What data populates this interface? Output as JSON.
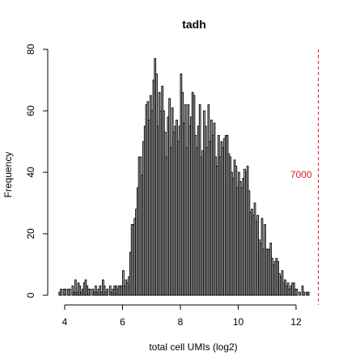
{
  "chart_data": {
    "type": "bar",
    "title": "tadh",
    "xlabel": "total cell UMIs (log2)",
    "ylabel": "Frequency",
    "xlim": [
      3.8,
      13.1
    ],
    "ylim": [
      0,
      80
    ],
    "x_ticks": [
      4,
      6,
      8,
      10,
      12
    ],
    "y_ticks": [
      0,
      20,
      40,
      60,
      80
    ],
    "bin_start": 3.8,
    "bin_width": 0.05,
    "values": [
      1,
      2,
      0,
      2,
      2,
      0,
      2,
      2,
      0,
      3,
      1,
      5,
      1,
      4,
      3,
      1,
      2,
      4,
      5,
      3,
      2,
      2,
      0,
      2,
      1,
      3,
      1,
      2,
      3,
      1,
      5,
      3,
      1,
      2,
      0,
      3,
      1,
      2,
      3,
      3,
      2,
      3,
      3,
      3,
      8,
      3,
      5,
      4,
      6,
      14,
      23,
      23,
      25,
      28,
      35,
      45,
      45,
      39,
      50,
      55,
      62,
      63,
      57,
      65,
      60,
      70,
      77,
      72,
      55,
      66,
      60,
      68,
      60,
      53,
      45,
      58,
      64,
      48,
      61,
      53,
      55,
      57,
      50,
      55,
      72,
      66,
      56,
      62,
      48,
      62,
      55,
      58,
      66,
      65,
      52,
      48,
      55,
      62,
      45,
      47,
      60,
      55,
      48,
      62,
      50,
      57,
      52,
      56,
      45,
      42,
      52,
      45,
      50,
      48,
      51,
      52,
      52,
      46,
      45,
      40,
      38,
      44,
      42,
      35,
      40,
      37,
      35,
      38,
      41,
      40,
      42,
      34,
      27,
      28,
      26,
      30,
      24,
      26,
      18,
      17,
      25,
      15,
      23,
      15,
      15,
      15,
      17,
      12,
      10,
      11,
      12,
      11,
      7,
      6,
      8,
      4,
      5,
      3,
      4,
      2,
      3,
      4,
      4,
      2,
      2,
      0,
      1,
      0,
      3,
      1,
      0,
      1,
      1
    ],
    "threshold": {
      "x": 12.77,
      "label": "7000",
      "color": "#e31a1c"
    }
  }
}
